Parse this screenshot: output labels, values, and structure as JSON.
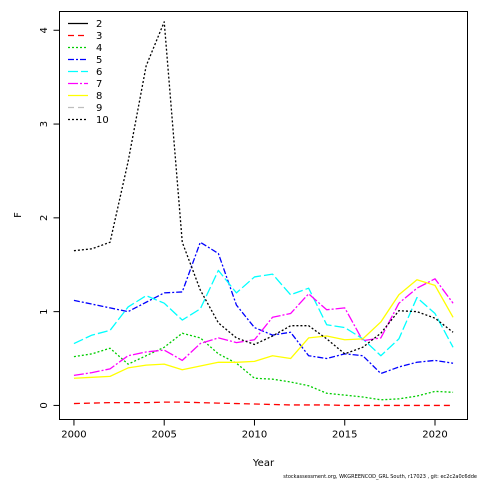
{
  "chart_data": {
    "type": "line",
    "xlabel": "Year",
    "ylabel": "F",
    "xlim": [
      1999.2,
      2021.8
    ],
    "ylim": [
      -0.15,
      4.2
    ],
    "x_ticks": [
      2000,
      2005,
      2010,
      2015,
      2020
    ],
    "y_ticks": [
      0,
      1,
      2,
      3,
      4
    ],
    "legend_position": "top-left",
    "footnote": "stockassessment.org,  WKGREENCOD_GRL South, r17023 ,  git:  ec2c2a0c6dde",
    "x": [
      2000,
      2001,
      2002,
      2003,
      2004,
      2005,
      2006,
      2007,
      2008,
      2009,
      2010,
      2011,
      2012,
      2013,
      2014,
      2015,
      2016,
      2017,
      2018,
      2019,
      2020,
      2021
    ],
    "series": [
      {
        "name": "2",
        "color": "#000000",
        "dash": "solid",
        "values": [
          null,
          null,
          null,
          null,
          null,
          null,
          null,
          null,
          null,
          null,
          null,
          null,
          null,
          null,
          null,
          null,
          null,
          null,
          null,
          null,
          null,
          null
        ]
      },
      {
        "name": "3",
        "color": "#ff0000",
        "dash": "6,4",
        "values": [
          0.02,
          0.025,
          0.03,
          0.03,
          0.03,
          0.035,
          0.035,
          0.03,
          0.025,
          0.02,
          0.015,
          0.01,
          0.005,
          0.005,
          0.005,
          0.0,
          0.0,
          0.0,
          0.0,
          0.0,
          0.0,
          0.0
        ]
      },
      {
        "name": "4",
        "color": "#00cd00",
        "dash": "2,2",
        "values": [
          0.52,
          0.55,
          0.61,
          0.44,
          0.53,
          0.62,
          0.77,
          0.72,
          0.55,
          0.45,
          0.29,
          0.28,
          0.25,
          0.21,
          0.13,
          0.11,
          0.09,
          0.06,
          0.07,
          0.1,
          0.15,
          0.14
        ]
      },
      {
        "name": "5",
        "color": "#0000ff",
        "dash": "6,2,2,2",
        "values": [
          1.12,
          1.08,
          1.04,
          1.0,
          1.1,
          1.2,
          1.21,
          1.74,
          1.62,
          1.07,
          0.83,
          0.75,
          0.78,
          0.53,
          0.5,
          0.55,
          0.53,
          0.34,
          0.41,
          0.46,
          0.48,
          0.45
        ]
      },
      {
        "name": "6",
        "color": "#00ffff",
        "dash": "10,3",
        "values": [
          0.66,
          0.75,
          0.8,
          1.05,
          1.17,
          1.09,
          0.91,
          1.03,
          1.44,
          1.2,
          1.37,
          1.4,
          1.18,
          1.25,
          0.86,
          0.83,
          0.71,
          0.53,
          0.71,
          1.15,
          0.98,
          0.62
        ]
      },
      {
        "name": "7",
        "color": "#ff00ff",
        "dash": "10,2,2,2",
        "values": [
          0.32,
          0.35,
          0.39,
          0.53,
          0.57,
          0.59,
          0.48,
          0.66,
          0.72,
          0.67,
          0.7,
          0.94,
          0.98,
          1.19,
          1.02,
          1.04,
          0.69,
          0.72,
          1.09,
          1.25,
          1.35,
          1.09
        ]
      },
      {
        "name": "8",
        "color": "#ffff00",
        "dash": "solid",
        "values": [
          0.29,
          0.3,
          0.31,
          0.4,
          0.43,
          0.44,
          0.38,
          0.42,
          0.46,
          0.46,
          0.47,
          0.53,
          0.5,
          0.72,
          0.74,
          0.7,
          0.71,
          0.89,
          1.18,
          1.34,
          1.28,
          0.94
        ]
      },
      {
        "name": "9",
        "color": "#bebebe",
        "dash": "6,4",
        "values": [
          null,
          null,
          null,
          null,
          null,
          null,
          null,
          null,
          null,
          null,
          null,
          null,
          null,
          null,
          null,
          null,
          null,
          null,
          null,
          null,
          null,
          null
        ]
      },
      {
        "name": "10",
        "color": "#000000",
        "dash": "2,2",
        "values": [
          1.65,
          1.67,
          1.74,
          2.6,
          3.62,
          4.09,
          1.74,
          1.23,
          0.88,
          0.72,
          0.65,
          0.74,
          0.85,
          0.85,
          0.71,
          0.55,
          0.62,
          0.77,
          1.01,
          1.0,
          0.93,
          0.78
        ]
      }
    ]
  }
}
